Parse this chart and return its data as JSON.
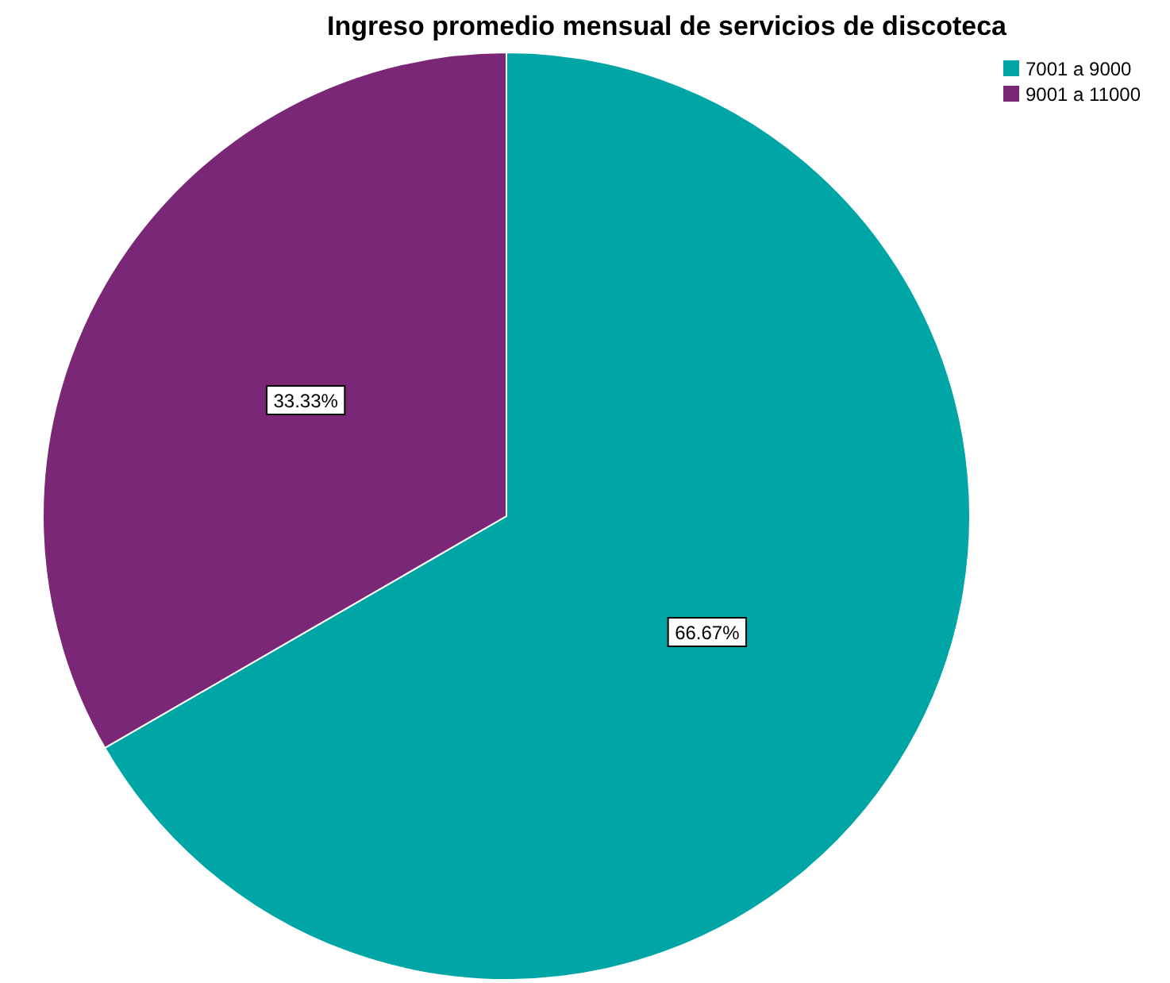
{
  "chart_data": {
    "type": "pie",
    "title": "Ingreso promedio mensual de servicios de discoteca",
    "categories": [
      "7001 a 9000",
      "9001 a 11000"
    ],
    "values": [
      66.67,
      33.33
    ],
    "colors": [
      "#00a6a6",
      "#7b2777"
    ],
    "value_labels": [
      "66.67%",
      "33.33%"
    ],
    "legend": "top right"
  }
}
